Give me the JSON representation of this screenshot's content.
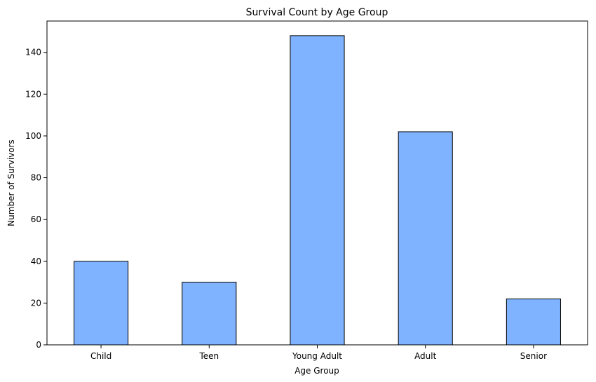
{
  "chart_data": {
    "type": "bar",
    "title": "Survival Count by Age Group",
    "xlabel": "Age Group",
    "ylabel": "Number of Survivors",
    "categories": [
      "Child",
      "Teen",
      "Young Adult",
      "Adult",
      "Senior"
    ],
    "values": [
      40,
      30,
      148,
      102,
      22
    ],
    "ylim": [
      0,
      155
    ],
    "yticks": [
      0,
      20,
      40,
      60,
      80,
      100,
      120,
      140
    ],
    "grid": false,
    "legend": "none",
    "colors": {
      "bar_fill": "#80b3ff",
      "bar_edge": "#000000",
      "axis": "#000000"
    }
  }
}
